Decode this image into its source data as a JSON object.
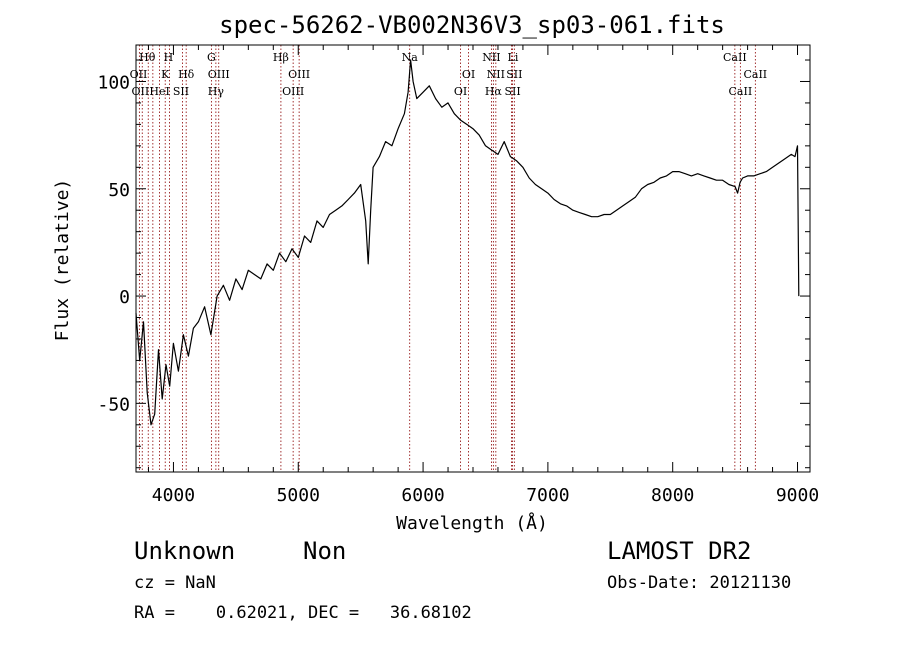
{
  "chart_data": {
    "type": "line",
    "title": "spec-56262-VB002N36V3_sp03-061.fits",
    "xlabel": "Wavelength (Å)",
    "ylabel": "Flux (relative)",
    "xlim": [
      3700,
      9100
    ],
    "ylim": [
      -82,
      117
    ],
    "xticks": [
      4000,
      5000,
      6000,
      7000,
      8000,
      9000
    ],
    "xtick_labels": [
      "4000",
      "5000",
      "6000",
      "7000",
      "8000",
      "9000"
    ],
    "yticks": [
      -50,
      0,
      50,
      100
    ],
    "ytick_labels": [
      "-50",
      "0",
      "50",
      "100"
    ],
    "grid": false,
    "legend": "none",
    "colors": {
      "spectrum": "#000000",
      "line_markers": "#8b0000",
      "axes": "#000000"
    },
    "series": [
      {
        "x": [
          3700,
          3730,
          3760,
          3790,
          3820,
          3850,
          3880,
          3910,
          3940,
          3970,
          4000,
          4040,
          4080,
          4120,
          4160,
          4200,
          4250,
          4300,
          4350,
          4400,
          4450,
          4500,
          4550,
          4600,
          4650,
          4700,
          4750,
          4800,
          4850,
          4900,
          4950,
          5000,
          5050,
          5100,
          5150,
          5200,
          5250,
          5300,
          5350,
          5400,
          5450,
          5500,
          5540,
          5560,
          5580,
          5600,
          5650,
          5700,
          5750,
          5800,
          5850,
          5880,
          5900,
          5920,
          5950,
          6000,
          6050,
          6100,
          6150,
          6200,
          6250,
          6300,
          6350,
          6400,
          6450,
          6500,
          6550,
          6600,
          6650,
          6700,
          6750,
          6800,
          6850,
          6900,
          6950,
          7000,
          7050,
          7100,
          7150,
          7200,
          7250,
          7300,
          7350,
          7400,
          7450,
          7500,
          7550,
          7600,
          7650,
          7700,
          7750,
          7800,
          7850,
          7900,
          7950,
          8000,
          8050,
          8100,
          8150,
          8200,
          8250,
          8300,
          8350,
          8400,
          8450,
          8500,
          8520,
          8540,
          8560,
          8600,
          8650,
          8700,
          8750,
          8800,
          8850,
          8900,
          8950,
          8980,
          9000,
          9010
        ],
        "y": [
          -8,
          -30,
          -12,
          -45,
          -60,
          -55,
          -25,
          -48,
          -32,
          -42,
          -22,
          -35,
          -18,
          -28,
          -15,
          -12,
          -5,
          -18,
          0,
          5,
          -2,
          8,
          3,
          12,
          10,
          8,
          15,
          12,
          20,
          16,
          22,
          18,
          28,
          25,
          35,
          32,
          38,
          40,
          42,
          45,
          48,
          52,
          35,
          15,
          40,
          60,
          65,
          72,
          70,
          78,
          85,
          95,
          110,
          100,
          92,
          95,
          98,
          92,
          88,
          90,
          85,
          82,
          80,
          78,
          75,
          70,
          68,
          66,
          72,
          65,
          63,
          60,
          55,
          52,
          50,
          48,
          45,
          43,
          42,
          40,
          39,
          38,
          37,
          37,
          38,
          38,
          40,
          42,
          44,
          46,
          50,
          52,
          53,
          55,
          56,
          58,
          58,
          57,
          56,
          57,
          56,
          55,
          54,
          54,
          52,
          51,
          48,
          53,
          55,
          56,
          56,
          57,
          58,
          60,
          62,
          64,
          66,
          65,
          70,
          0
        ]
      }
    ],
    "lines": [
      {
        "wavelength": 3727,
        "label": "OII"
      },
      {
        "wavelength": 3750,
        "label": "OII"
      },
      {
        "wavelength": 3798,
        "label": "Hθ"
      },
      {
        "wavelength": 3835,
        "label": "Hθ"
      },
      {
        "wavelength": 3889,
        "label": "HeI"
      },
      {
        "wavelength": 3934,
        "label": "K"
      },
      {
        "wavelength": 3969,
        "label": "H"
      },
      {
        "wavelength": 4072,
        "label": "SII"
      },
      {
        "wavelength": 4102,
        "label": "Hδ"
      },
      {
        "wavelength": 4304,
        "label": "G"
      },
      {
        "wavelength": 4340,
        "label": "Hγ"
      },
      {
        "wavelength": 4363,
        "label": "OIII"
      },
      {
        "wavelength": 4861,
        "label": "Hβ"
      },
      {
        "wavelength": 4959,
        "label": "OIII"
      },
      {
        "wavelength": 5007,
        "label": "OIII"
      },
      {
        "wavelength": 5893,
        "label": "Na"
      },
      {
        "wavelength": 6300,
        "label": "OI"
      },
      {
        "wavelength": 6364,
        "label": "OI"
      },
      {
        "wavelength": 6548,
        "label": "NII"
      },
      {
        "wavelength": 6563,
        "label": "Hα"
      },
      {
        "wavelength": 6583,
        "label": "NII"
      },
      {
        "wavelength": 6708,
        "label": "Li"
      },
      {
        "wavelength": 6717,
        "label": "SII"
      },
      {
        "wavelength": 6731,
        "label": "SII"
      },
      {
        "wavelength": 8498,
        "label": "CaII"
      },
      {
        "wavelength": 8542,
        "label": "CaII"
      },
      {
        "wavelength": 8662,
        "label": "CaII"
      }
    ],
    "line_label_text": [
      {
        "text": "Hθ",
        "row": 0,
        "wavelength": 3790
      },
      {
        "text": "H",
        "row": 0,
        "wavelength": 3960
      },
      {
        "text": "G",
        "row": 0,
        "wavelength": 4304
      },
      {
        "text": "Hβ",
        "row": 0,
        "wavelength": 4861
      },
      {
        "text": "Na",
        "row": 0,
        "wavelength": 5893
      },
      {
        "text": "NII",
        "row": 0,
        "wavelength": 6548
      },
      {
        "text": "Li",
        "row": 0,
        "wavelength": 6720
      },
      {
        "text": "CaII",
        "row": 0,
        "wavelength": 8498
      },
      {
        "text": "OII",
        "row": 1,
        "wavelength": 3720
      },
      {
        "text": "K",
        "row": 1,
        "wavelength": 3934
      },
      {
        "text": "Hδ",
        "row": 1,
        "wavelength": 4102
      },
      {
        "text": "OIII",
        "row": 1,
        "wavelength": 4363
      },
      {
        "text": "OIII",
        "row": 1,
        "wavelength": 5007
      },
      {
        "text": "OI",
        "row": 1,
        "wavelength": 6364
      },
      {
        "text": "NII",
        "row": 1,
        "wavelength": 6583
      },
      {
        "text": "SII",
        "row": 1,
        "wavelength": 6731
      },
      {
        "text": "CaII",
        "row": 1,
        "wavelength": 8662
      },
      {
        "text": "OII",
        "row": 2,
        "wavelength": 3735
      },
      {
        "text": "HeI",
        "row": 2,
        "wavelength": 3889
      },
      {
        "text": "SII",
        "row": 2,
        "wavelength": 4060
      },
      {
        "text": "Hγ",
        "row": 2,
        "wavelength": 4340
      },
      {
        "text": "OIII",
        "row": 2,
        "wavelength": 4959
      },
      {
        "text": "OI",
        "row": 2,
        "wavelength": 6300
      },
      {
        "text": "Hα",
        "row": 2,
        "wavelength": 6563
      },
      {
        "text": "SII",
        "row": 2,
        "wavelength": 6717
      },
      {
        "text": "CaII",
        "row": 2,
        "wavelength": 8542
      }
    ]
  },
  "footer": {
    "class_label": "Unknown",
    "subclass_label": "Non",
    "survey": "LAMOST DR2",
    "redshift": "cz = NaN",
    "obs_date": "Obs-Date: 20121130",
    "coords": "RA =    0.62021, DEC =   36.68102"
  }
}
